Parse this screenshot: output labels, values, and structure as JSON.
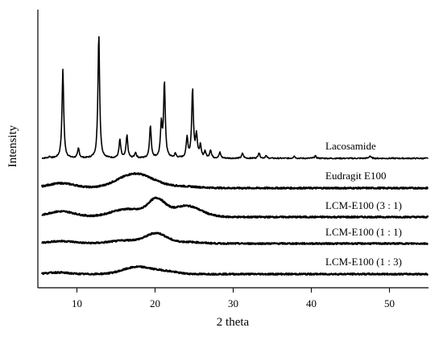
{
  "chart_data": {
    "type": "line",
    "title": "",
    "xlabel": "2 theta",
    "ylabel": "Intensity",
    "xlim": [
      5,
      55
    ],
    "xticks": [
      10,
      20,
      30,
      40,
      50
    ],
    "yticks": [],
    "grid": false,
    "legend": "none",
    "line_color": "#000000",
    "series": [
      {
        "name": "Lacosamide",
        "baseline": 0,
        "peaks": [
          {
            "x": 6.5,
            "h": 2
          },
          {
            "x": 8.2,
            "h": 110
          },
          {
            "x": 10.2,
            "h": 12
          },
          {
            "x": 12.8,
            "h": 155
          },
          {
            "x": 15.5,
            "h": 23
          },
          {
            "x": 16.4,
            "h": 28
          },
          {
            "x": 17.5,
            "h": 7
          },
          {
            "x": 19.4,
            "h": 40
          },
          {
            "x": 20.8,
            "h": 40
          },
          {
            "x": 21.2,
            "h": 93
          },
          {
            "x": 22.6,
            "h": 5
          },
          {
            "x": 24.1,
            "h": 25
          },
          {
            "x": 24.8,
            "h": 85
          },
          {
            "x": 25.3,
            "h": 28
          },
          {
            "x": 25.8,
            "h": 15
          },
          {
            "x": 26.4,
            "h": 8
          },
          {
            "x": 27.1,
            "h": 10
          },
          {
            "x": 28.3,
            "h": 7
          },
          {
            "x": 31.2,
            "h": 6
          },
          {
            "x": 33.3,
            "h": 7
          },
          {
            "x": 34.2,
            "h": 3
          },
          {
            "x": 37.8,
            "h": 3
          },
          {
            "x": 40.5,
            "h": 3
          },
          {
            "x": 47.5,
            "h": 3
          }
        ]
      },
      {
        "name": "Eudragit E100",
        "baseline": 0,
        "humps": [
          {
            "x": 8.0,
            "h": 6,
            "w": 2.5
          },
          {
            "x": 17.5,
            "h": 18,
            "w": 3.2
          },
          {
            "x": 23.5,
            "h": 2,
            "w": 3.0
          }
        ]
      },
      {
        "name": "LCM-E100 (3 : 1)",
        "baseline": 0,
        "humps": [
          {
            "x": 8.0,
            "h": 7,
            "w": 2.5
          },
          {
            "x": 16.5,
            "h": 10,
            "w": 3.0
          },
          {
            "x": 20.2,
            "h": 20,
            "w": 1.5
          },
          {
            "x": 24.0,
            "h": 14,
            "w": 2.6
          }
        ]
      },
      {
        "name": "LCM-E100 (1 : 1)",
        "baseline": 0,
        "humps": [
          {
            "x": 8.0,
            "h": 3,
            "w": 2.5
          },
          {
            "x": 16.5,
            "h": 4,
            "w": 3.0
          },
          {
            "x": 20.2,
            "h": 12,
            "w": 1.8
          },
          {
            "x": 24.0,
            "h": 2,
            "w": 2.5
          }
        ]
      },
      {
        "name": "LCM-E100 (1 : 3)",
        "baseline": 0,
        "humps": [
          {
            "x": 7.5,
            "h": 2,
            "w": 2.0
          },
          {
            "x": 17.8,
            "h": 9,
            "w": 2.6
          },
          {
            "x": 21.5,
            "h": 3,
            "w": 2.0
          }
        ]
      }
    ]
  }
}
